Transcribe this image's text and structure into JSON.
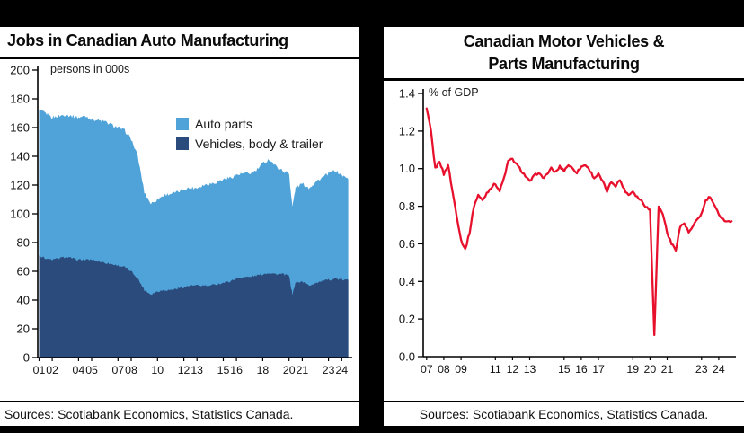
{
  "accent_colors": {
    "auto_parts_blue": "#4FA3D9",
    "vehicles_navy": "#2A4B7C",
    "gdp_line_red": "#E8112D",
    "frame_black": "#000000"
  },
  "left_chart": {
    "title": "Jobs in Canadian Auto Manufacturing",
    "unit_annotation": "persons in 000s",
    "legend": [
      {
        "label": "Auto parts",
        "color": "#4FA3D9"
      },
      {
        "label": "Vehicles, body & trailer",
        "color": "#2A4B7C"
      }
    ],
    "source": "Sources: Scotiabank Economics, Statistics Canada."
  },
  "right_chart": {
    "title_line1": "Canadian Motor Vehicles &",
    "title_line2": "Parts Manufacturing",
    "unit_annotation": "% of GDP",
    "source": "Sources: Scotiabank Economics, Statistics Canada."
  },
  "chart_data": [
    {
      "type": "area",
      "stacked": true,
      "title": "Jobs in Canadian Auto Manufacturing",
      "ylabel": "persons in 000s",
      "ylim": [
        0,
        200
      ],
      "yticks": [
        0,
        20,
        40,
        60,
        80,
        100,
        120,
        140,
        160,
        180,
        200
      ],
      "xlim": [
        2000.9,
        2024.8
      ],
      "xticks": {
        "positions": [
          2001,
          2002,
          2004,
          2005,
          2007,
          2008,
          2010,
          2012,
          2013,
          2015,
          2016,
          2018,
          2020,
          2021,
          2023,
          2024
        ],
        "labels": [
          "01",
          "02",
          "04",
          "05",
          "07",
          "08",
          "10",
          "12",
          "13",
          "15",
          "16",
          "18",
          "20",
          "21",
          "23",
          "24"
        ]
      },
      "grid": false,
      "legend_position": "upper-right-inside",
      "x": [
        2001,
        2001.5,
        2002,
        2002.5,
        2003,
        2003.5,
        2004,
        2004.5,
        2005,
        2005.5,
        2006,
        2006.5,
        2007,
        2007.5,
        2008,
        2008.5,
        2009,
        2009.5,
        2010,
        2010.5,
        2011,
        2011.5,
        2012,
        2012.5,
        2013,
        2013.5,
        2014,
        2014.5,
        2015,
        2015.5,
        2016,
        2016.5,
        2017,
        2017.5,
        2018,
        2018.5,
        2019,
        2019.5,
        2020,
        2020.25,
        2020.5,
        2021,
        2021.5,
        2022,
        2022.5,
        2023,
        2023.5,
        2024,
        2024.5
      ],
      "series": [
        {
          "name": "Vehicles, body & trailer",
          "color": "#2A4B7C",
          "values": [
            71,
            69,
            68,
            69,
            70,
            69,
            68,
            68,
            68,
            67,
            66,
            65,
            64,
            63,
            60,
            55,
            47,
            44,
            46,
            47,
            47,
            48,
            49,
            50,
            50,
            50,
            50,
            51,
            52,
            53,
            55,
            56,
            56,
            57,
            58,
            59,
            58,
            58,
            57,
            44,
            52,
            53,
            50,
            52,
            53,
            54,
            55,
            54,
            54
          ]
        },
        {
          "name": "Auto parts",
          "color": "#4FA3D9",
          "values": [
            101,
            101,
            99,
            99,
            99,
            99,
            99,
            100,
            98,
            98,
            98,
            97,
            96,
            95,
            92,
            85,
            68,
            63,
            64,
            66,
            67,
            67,
            68,
            68,
            68,
            70,
            71,
            71,
            72,
            72,
            72,
            72,
            72,
            73,
            77,
            79,
            75,
            72,
            71,
            61,
            66,
            68,
            68,
            70,
            72,
            74,
            75,
            73,
            70
          ]
        }
      ]
    },
    {
      "type": "line",
      "title": "Canadian Motor Vehicles & Parts Manufacturing",
      "ylabel": "% of GDP",
      "ylim": [
        0,
        1.4
      ],
      "yticks": [
        0,
        0.2,
        0.4,
        0.6,
        0.8,
        1.0,
        1.2,
        1.4
      ],
      "xlim": [
        2006.8,
        2025.0
      ],
      "xticks": {
        "positions": [
          2007,
          2008,
          2009,
          2011,
          2012,
          2013,
          2015,
          2016,
          2017,
          2019,
          2020,
          2021,
          2023,
          2024
        ],
        "labels": [
          "07",
          "08",
          "09",
          "11",
          "12",
          "13",
          "15",
          "16",
          "17",
          "19",
          "20",
          "21",
          "23",
          "24"
        ]
      },
      "grid": false,
      "series": [
        {
          "name": "Motor vehicles & parts manufacturing, % of GDP",
          "color": "#E8112D",
          "x": [
            2007,
            2007.25,
            2007.5,
            2007.75,
            2008,
            2008.25,
            2008.5,
            2008.75,
            2009,
            2009.25,
            2009.5,
            2009.75,
            2010,
            2010.25,
            2010.5,
            2010.75,
            2011,
            2011.25,
            2011.5,
            2011.75,
            2012,
            2012.25,
            2012.5,
            2012.75,
            2013,
            2013.25,
            2013.5,
            2013.75,
            2014,
            2014.25,
            2014.5,
            2014.75,
            2015,
            2015.25,
            2015.5,
            2015.75,
            2016,
            2016.25,
            2016.5,
            2016.75,
            2017,
            2017.25,
            2017.5,
            2017.75,
            2018,
            2018.25,
            2018.5,
            2018.75,
            2019,
            2019.25,
            2019.5,
            2019.75,
            2020,
            2020.25,
            2020.5,
            2020.75,
            2021,
            2021.25,
            2021.5,
            2021.75,
            2022,
            2022.25,
            2022.5,
            2022.75,
            2023,
            2023.25,
            2023.5,
            2023.75,
            2024,
            2024.25,
            2024.5,
            2024.75
          ],
          "values": [
            1.32,
            1.2,
            1.0,
            1.04,
            0.97,
            1.02,
            0.88,
            0.75,
            0.62,
            0.57,
            0.66,
            0.8,
            0.86,
            0.83,
            0.87,
            0.9,
            0.92,
            0.88,
            0.95,
            1.04,
            1.05,
            1.02,
            0.99,
            0.96,
            0.93,
            0.96,
            0.98,
            0.95,
            0.97,
            1.0,
            0.98,
            1.01,
            0.99,
            1.02,
            1.0,
            0.98,
            1.01,
            1.02,
            0.99,
            0.95,
            0.97,
            0.93,
            0.88,
            0.93,
            0.91,
            0.94,
            0.89,
            0.86,
            0.88,
            0.85,
            0.83,
            0.8,
            0.78,
            0.12,
            0.8,
            0.76,
            0.66,
            0.6,
            0.57,
            0.69,
            0.71,
            0.66,
            0.69,
            0.73,
            0.76,
            0.83,
            0.85,
            0.8,
            0.76,
            0.73,
            0.72,
            0.72
          ]
        }
      ]
    }
  ]
}
